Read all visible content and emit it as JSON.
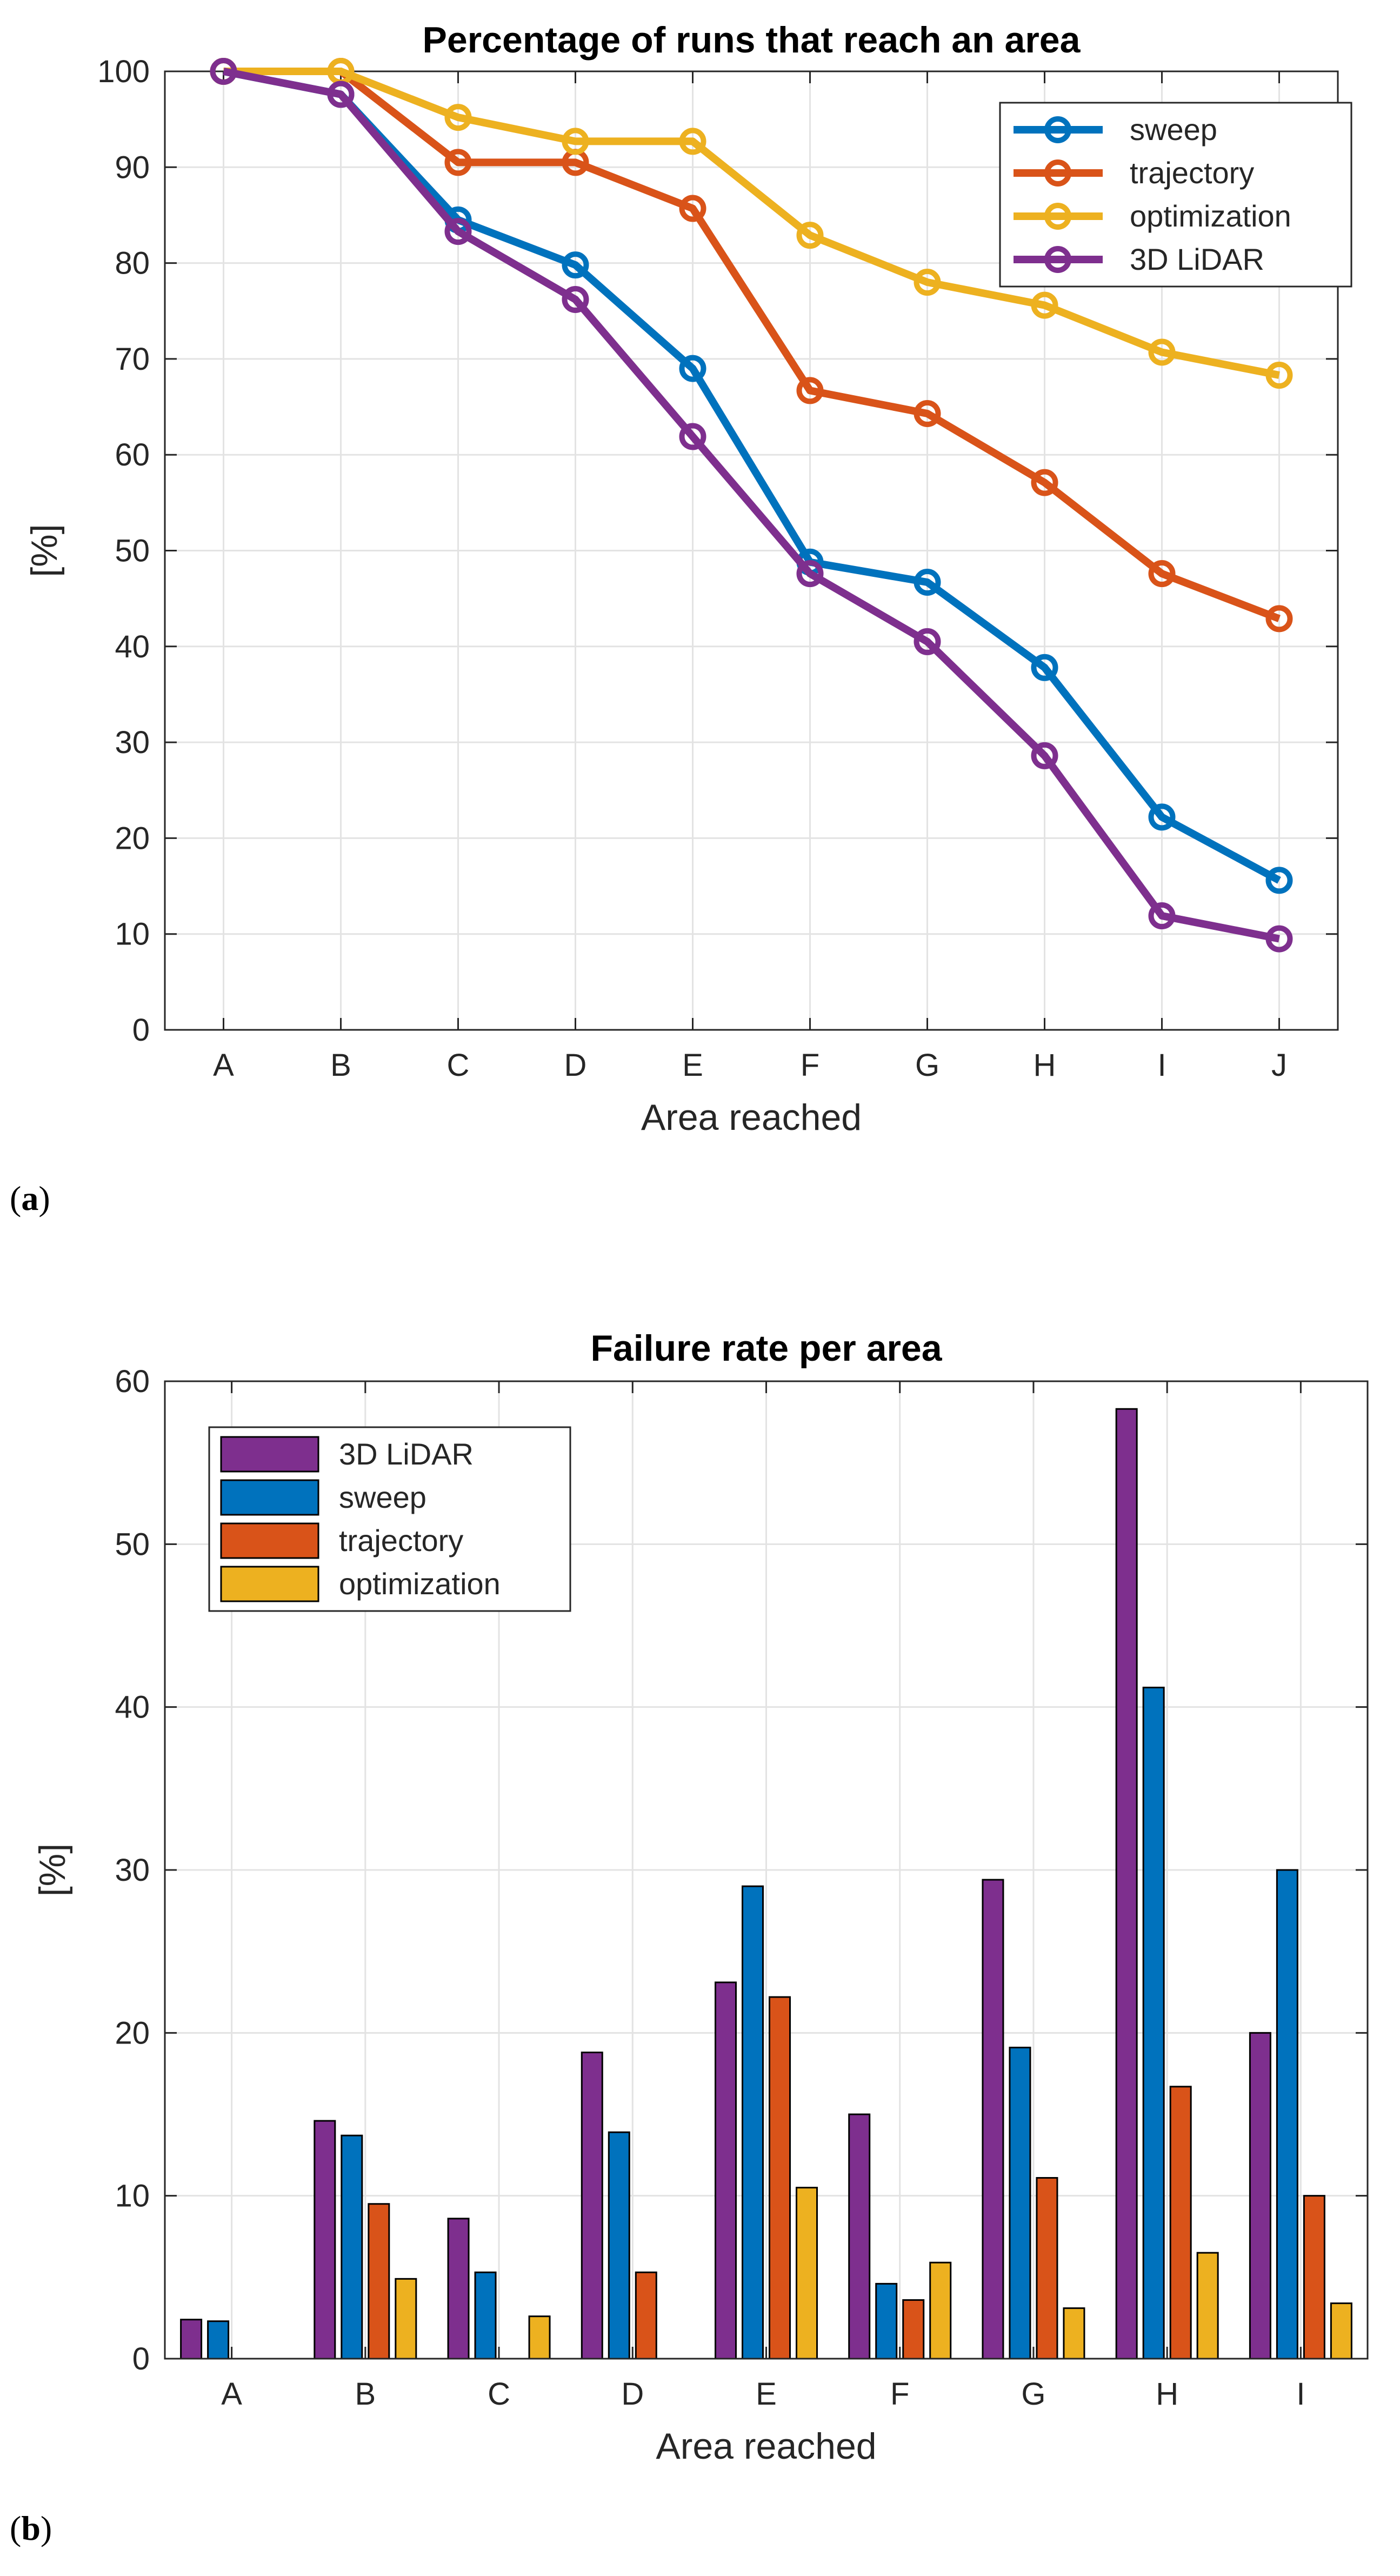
{
  "figure": {
    "label_a": "a",
    "label_b": "b"
  },
  "chart_data": [
    {
      "type": "line",
      "title": "Percentage of runs that reach an area",
      "xlabel": "Area reached",
      "ylabel": "[%]",
      "categories": [
        "A",
        "B",
        "C",
        "D",
        "E",
        "F",
        "G",
        "H",
        "I",
        "J"
      ],
      "ylim": [
        0,
        100
      ],
      "yticks": [
        0,
        10,
        20,
        30,
        40,
        50,
        60,
        70,
        80,
        90,
        100
      ],
      "grid": true,
      "legend_position": "top-right",
      "series": [
        {
          "name": "sweep",
          "color": "#0072BD",
          "values": [
            100,
            97.6,
            84.5,
            79.8,
            69.0,
            48.8,
            46.7,
            37.8,
            22.2,
            15.6
          ]
        },
        {
          "name": "trajectory",
          "color": "#D95319",
          "values": [
            100,
            100,
            90.5,
            90.5,
            85.7,
            66.7,
            64.3,
            57.1,
            47.6,
            42.9
          ]
        },
        {
          "name": "optimization",
          "color": "#EDB120",
          "values": [
            100,
            100,
            95.2,
            92.7,
            92.7,
            82.9,
            78.0,
            75.6,
            70.7,
            68.3
          ]
        },
        {
          "name": "3D LiDAR",
          "color": "#7E2F8E",
          "values": [
            100,
            97.6,
            83.3,
            76.2,
            61.9,
            47.6,
            40.5,
            28.6,
            11.9,
            9.5
          ]
        }
      ]
    },
    {
      "type": "bar",
      "title": "Failure rate per area",
      "xlabel": "Area reached",
      "ylabel": "[%]",
      "categories": [
        "A",
        "B",
        "C",
        "D",
        "E",
        "F",
        "G",
        "H",
        "I"
      ],
      "ylim": [
        0,
        60
      ],
      "yticks": [
        0,
        10,
        20,
        30,
        40,
        50,
        60
      ],
      "grid": true,
      "legend_position": "top-left",
      "series": [
        {
          "name": "3D LiDAR",
          "color": "#7E2F8E",
          "values": [
            2.4,
            14.6,
            8.6,
            18.8,
            23.1,
            15.0,
            29.4,
            58.3,
            20.0
          ]
        },
        {
          "name": "sweep",
          "color": "#0072BD",
          "values": [
            2.3,
            13.7,
            5.3,
            13.9,
            29.0,
            4.6,
            19.1,
            41.2,
            30.0
          ]
        },
        {
          "name": "trajectory",
          "color": "#D95319",
          "values": [
            0,
            9.5,
            0,
            5.3,
            22.2,
            3.6,
            11.1,
            16.7,
            10.0
          ]
        },
        {
          "name": "optimization",
          "color": "#EDB120",
          "values": [
            0,
            4.9,
            2.6,
            0,
            10.5,
            5.9,
            3.1,
            6.5,
            3.4
          ]
        }
      ]
    }
  ]
}
